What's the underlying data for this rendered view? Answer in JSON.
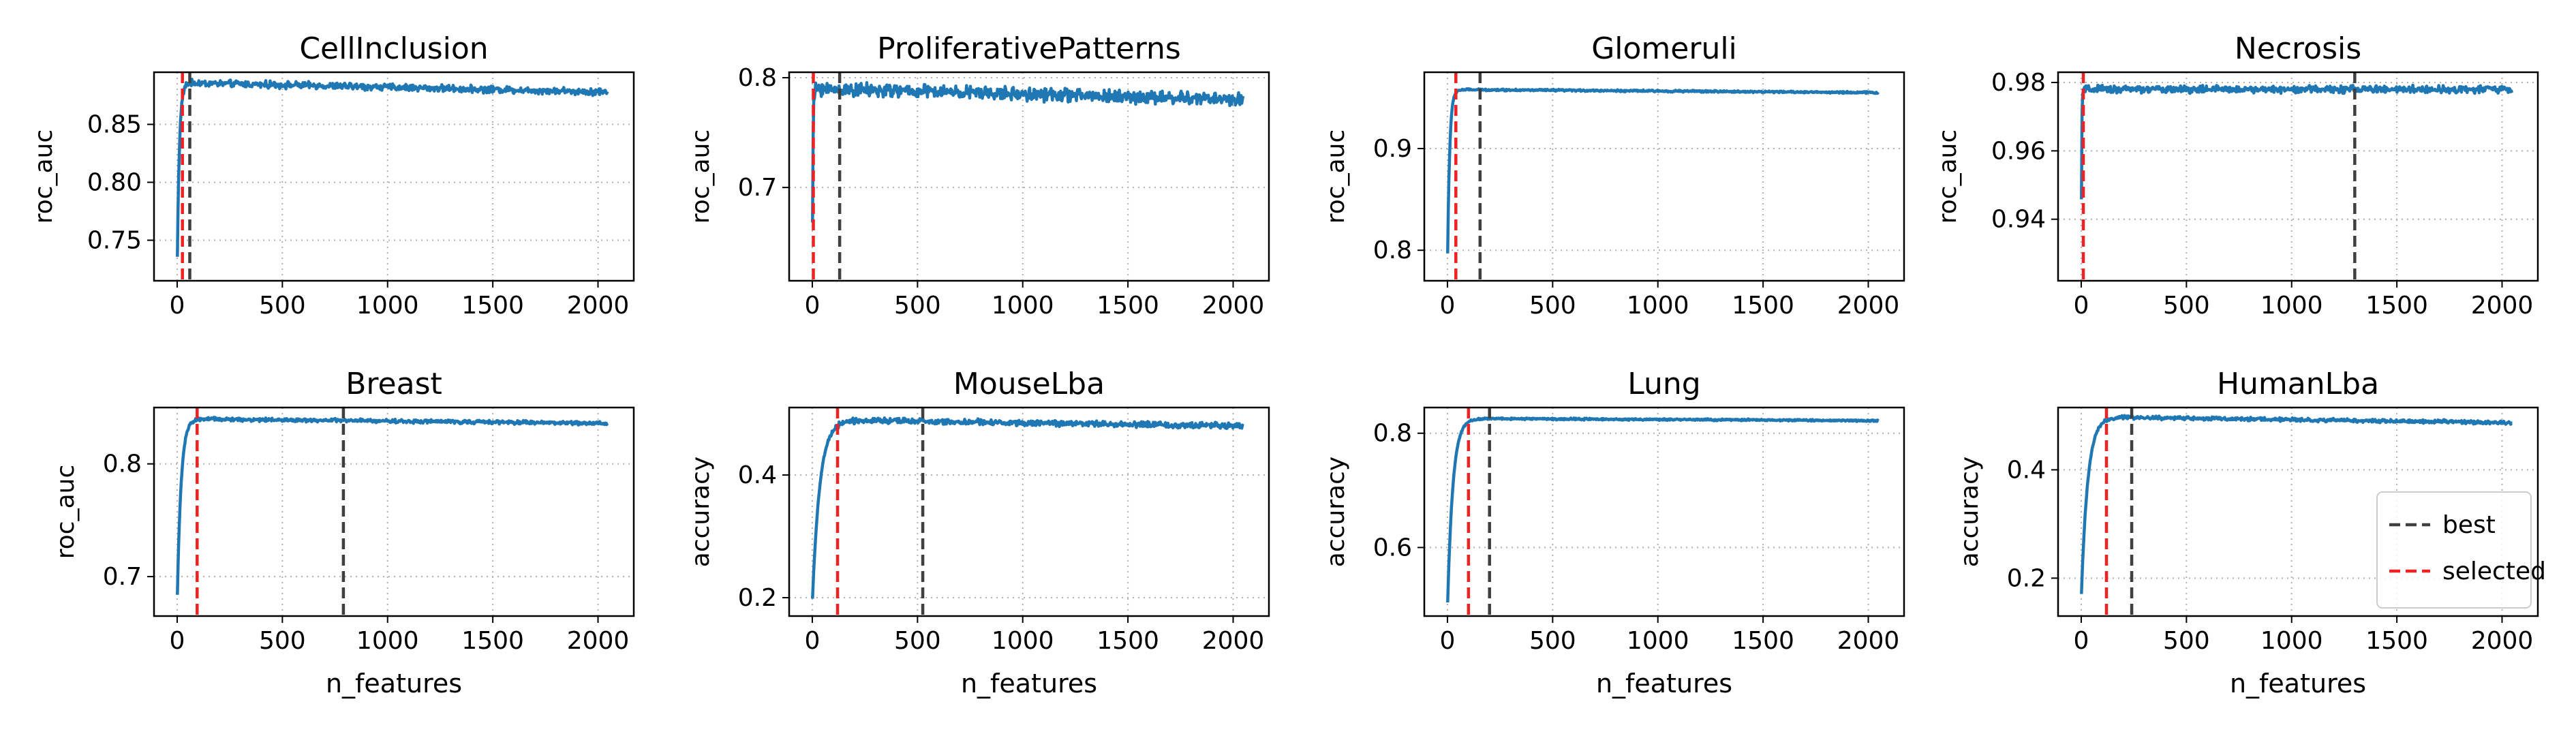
{
  "colors": {
    "line": "#1f77b4",
    "best": "#3f3f3f",
    "selected": "#ee2222",
    "grid": "#b0b0b0",
    "axes": "#000000"
  },
  "legend": {
    "best": "best",
    "selected": "selected",
    "placement": "lower-right of HumanLba panel"
  },
  "chart_data": [
    {
      "type": "line",
      "title": "CellInclusion",
      "xlabel": "",
      "ylabel": "roc_auc",
      "xlim": [
        -110,
        2170
      ],
      "ylim": [
        0.715,
        0.895
      ],
      "xticks": [
        0,
        500,
        1000,
        1500,
        2000
      ],
      "xtick_labels": [
        "0",
        "500",
        "1000",
        "1500",
        "2000"
      ],
      "yticks": [
        0.75,
        0.8,
        0.85
      ],
      "ytick_labels": [
        "0.75",
        "0.80",
        "0.85"
      ],
      "best": 60,
      "selected": 25,
      "curve": {
        "start": 0.72,
        "peak": 0.886,
        "end": 0.878,
        "rise": 10,
        "noise": 0.0022
      },
      "series": [
        {
          "name": "roc_auc",
          "x_range": [
            1,
            2048
          ]
        }
      ]
    },
    {
      "type": "line",
      "title": "ProliferativePatterns",
      "xlabel": "",
      "ylabel": "roc_auc",
      "xlim": [
        -110,
        2170
      ],
      "ylim": [
        0.615,
        0.805
      ],
      "xticks": [
        0,
        500,
        1000,
        1500,
        2000
      ],
      "xtick_labels": [
        "0",
        "500",
        "1000",
        "1500",
        "2000"
      ],
      "yticks": [
        0.7,
        0.8
      ],
      "ytick_labels": [
        "0.7",
        "0.8"
      ],
      "best": 130,
      "selected": 5,
      "curve": {
        "start": 0.62,
        "peak": 0.79,
        "end": 0.78,
        "rise": 3,
        "noise": 0.0045
      },
      "series": [
        {
          "name": "roc_auc",
          "x_range": [
            1,
            2048
          ]
        }
      ]
    },
    {
      "type": "line",
      "title": "Glomeruli",
      "xlabel": "",
      "ylabel": "roc_auc",
      "xlim": [
        -110,
        2170
      ],
      "ylim": [
        0.77,
        0.975
      ],
      "xticks": [
        0,
        500,
        1000,
        1500,
        2000
      ],
      "xtick_labels": [
        "0",
        "500",
        "1000",
        "1500",
        "2000"
      ],
      "yticks": [
        0.8,
        0.9
      ],
      "ytick_labels": [
        "0.8",
        "0.9"
      ],
      "best": 155,
      "selected": 40,
      "curve": {
        "start": 0.78,
        "peak": 0.958,
        "end": 0.955,
        "rise": 10,
        "noise": 0.0007
      },
      "series": [
        {
          "name": "roc_auc",
          "x_range": [
            1,
            2048
          ]
        }
      ]
    },
    {
      "type": "line",
      "title": "Necrosis",
      "xlabel": "",
      "ylabel": "roc_auc",
      "xlim": [
        -110,
        2170
      ],
      "ylim": [
        0.922,
        0.983
      ],
      "xticks": [
        0,
        500,
        1000,
        1500,
        2000
      ],
      "xtick_labels": [
        "0",
        "500",
        "1000",
        "1500",
        "2000"
      ],
      "yticks": [
        0.94,
        0.96,
        0.98
      ],
      "ytick_labels": [
        "0.94",
        "0.96",
        "0.98"
      ],
      "best": 1300,
      "selected": 10,
      "curve": {
        "start": 0.925,
        "peak": 0.978,
        "end": 0.978,
        "rise": 2,
        "noise": 0.0008
      },
      "series": [
        {
          "name": "roc_auc",
          "x_range": [
            1,
            2048
          ]
        }
      ]
    },
    {
      "type": "line",
      "title": "Breast",
      "xlabel": "n_features",
      "ylabel": "roc_auc",
      "xlim": [
        -110,
        2170
      ],
      "ylim": [
        0.665,
        0.85
      ],
      "xticks": [
        0,
        500,
        1000,
        1500,
        2000
      ],
      "xtick_labels": [
        "0",
        "500",
        "1000",
        "1500",
        "2000"
      ],
      "yticks": [
        0.7,
        0.8
      ],
      "ytick_labels": [
        "0.7",
        "0.8"
      ],
      "best": 790,
      "selected": 95,
      "curve": {
        "start": 0.675,
        "peak": 0.84,
        "end": 0.836,
        "rise": 18,
        "noise": 0.0012
      },
      "series": [
        {
          "name": "roc_auc",
          "x_range": [
            1,
            2048
          ]
        }
      ]
    },
    {
      "type": "line",
      "title": "MouseLba",
      "xlabel": "n_features",
      "ylabel": "accuracy",
      "xlim": [
        -110,
        2170
      ],
      "ylim": [
        0.17,
        0.51
      ],
      "xticks": [
        0,
        500,
        1000,
        1500,
        2000
      ],
      "xtick_labels": [
        "0",
        "500",
        "1000",
        "1500",
        "2000"
      ],
      "yticks": [
        0.2,
        0.4
      ],
      "ytick_labels": [
        "0.2",
        "0.4"
      ],
      "best": 525,
      "selected": 120,
      "curve": {
        "start": 0.19,
        "peak": 0.49,
        "end": 0.48,
        "rise": 35,
        "noise": 0.0035
      },
      "series": [
        {
          "name": "accuracy",
          "x_range": [
            1,
            2048
          ]
        }
      ]
    },
    {
      "type": "line",
      "title": "Lung",
      "xlabel": "n_features",
      "ylabel": "accuracy",
      "xlim": [
        -110,
        2170
      ],
      "ylim": [
        0.48,
        0.845
      ],
      "xticks": [
        0,
        500,
        1000,
        1500,
        2000
      ],
      "xtick_labels": [
        "0",
        "500",
        "1000",
        "1500",
        "2000"
      ],
      "yticks": [
        0.6,
        0.8
      ],
      "ytick_labels": [
        "0.6",
        "0.8"
      ],
      "best": 200,
      "selected": 100,
      "curve": {
        "start": 0.49,
        "peak": 0.826,
        "end": 0.822,
        "rise": 25,
        "noise": 0.0012
      },
      "series": [
        {
          "name": "accuracy",
          "x_range": [
            1,
            2048
          ]
        }
      ]
    },
    {
      "type": "line",
      "title": "HumanLba",
      "xlabel": "n_features",
      "ylabel": "accuracy",
      "xlim": [
        -110,
        2170
      ],
      "ylim": [
        0.13,
        0.515
      ],
      "xticks": [
        0,
        500,
        1000,
        1500,
        2000
      ],
      "xtick_labels": [
        "0",
        "500",
        "1000",
        "1500",
        "2000"
      ],
      "yticks": [
        0.2,
        0.4
      ],
      "ytick_labels": [
        "0.2",
        "0.4"
      ],
      "best": 240,
      "selected": 120,
      "curve": {
        "start": 0.16,
        "peak": 0.498,
        "end": 0.487,
        "rise": 30,
        "noise": 0.0025
      },
      "series": [
        {
          "name": "accuracy",
          "x_range": [
            1,
            2048
          ]
        }
      ]
    }
  ]
}
